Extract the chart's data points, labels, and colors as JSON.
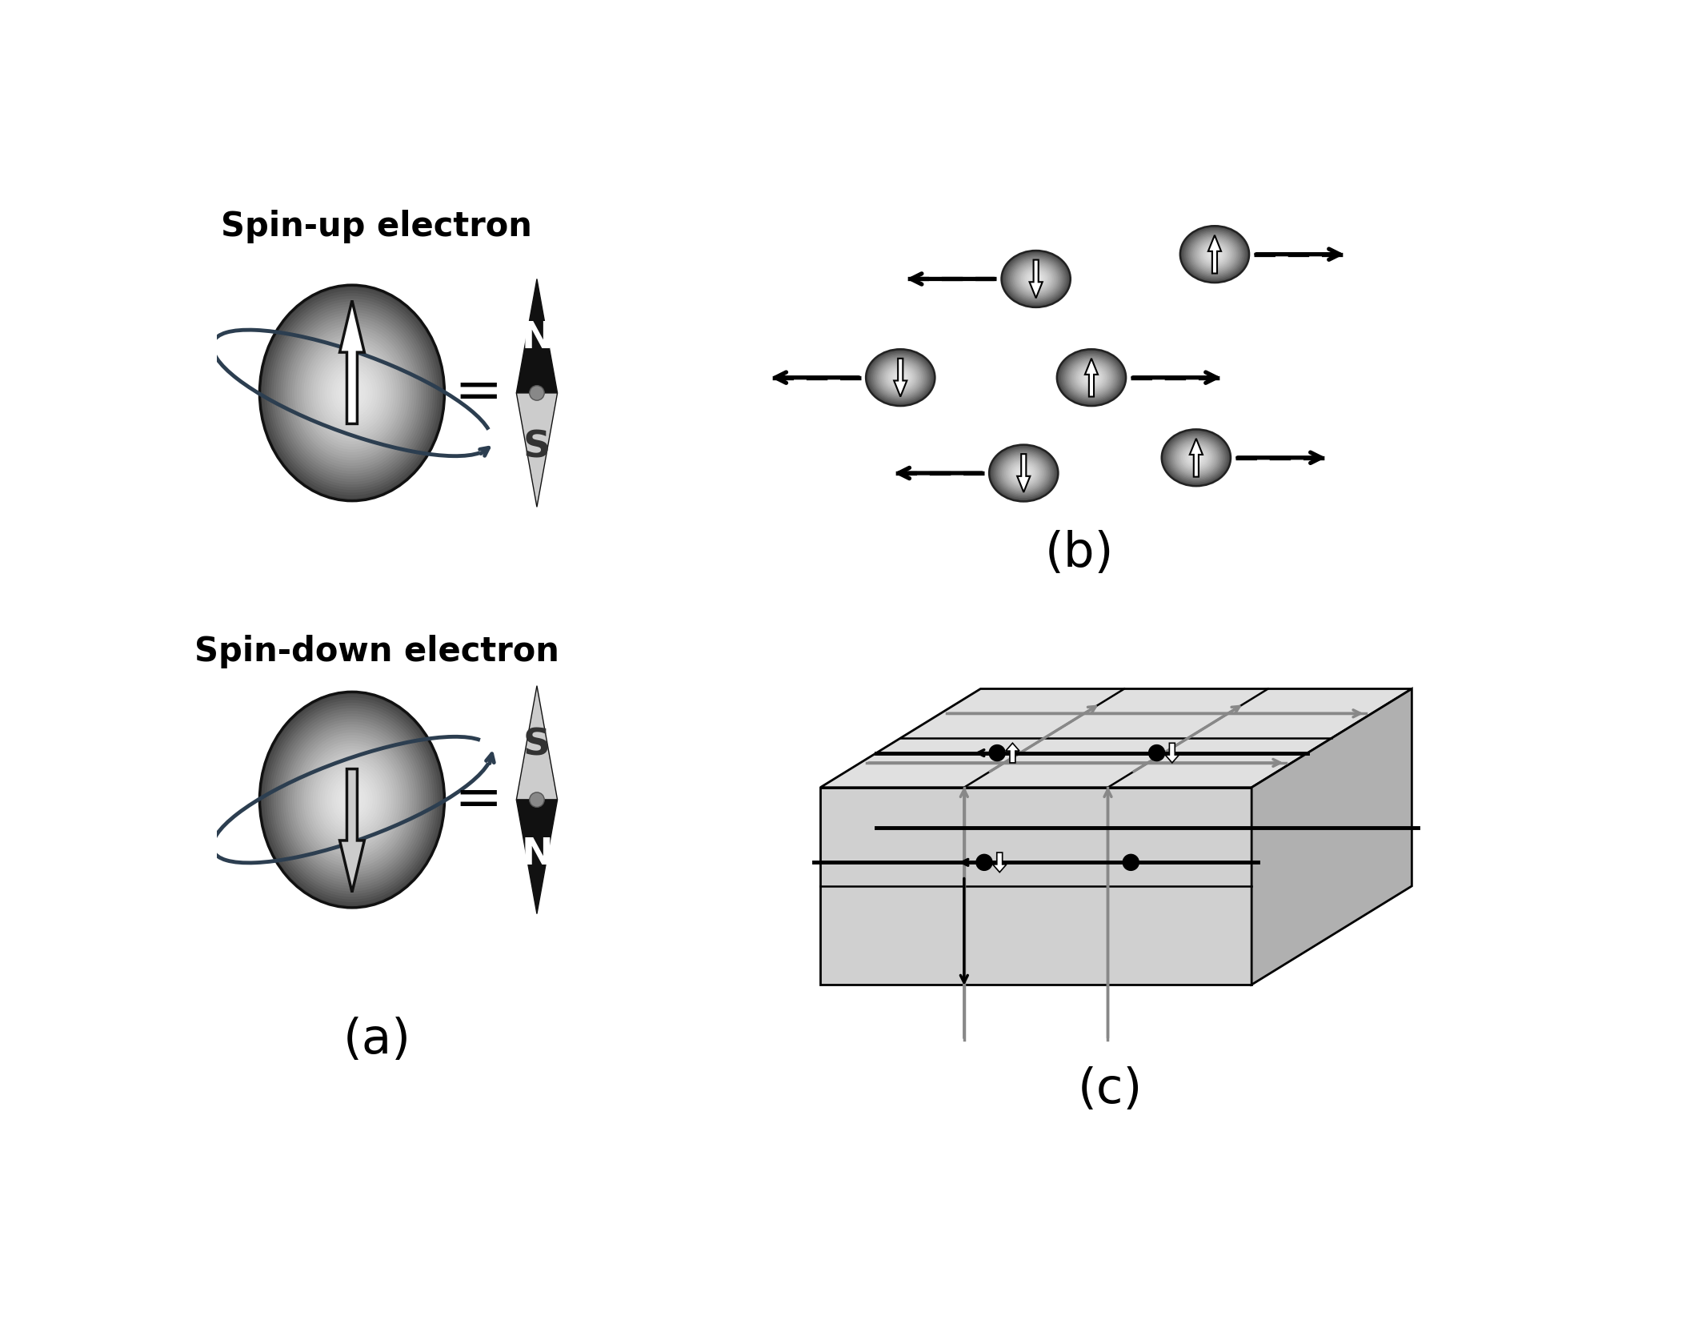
{
  "bg_color": "#ffffff",
  "label_a": "(a)",
  "label_b": "(b)",
  "label_c": "(c)",
  "spin_up_label": "Spin-up electron",
  "spin_down_label": "Spin-down electron",
  "label_fontsize": 30,
  "letter_fontsize": 44,
  "NS_fontsize": 34,
  "equals_fontsize": 52,
  "sphere_color_light": "#e8e8e8",
  "sphere_color_dark": "#444444",
  "orbit_color": "#2c3e50",
  "compass_black": "#111111",
  "compass_gray": "#cccccc",
  "compass_dot": "#888888",
  "arrow_up_color": "#ffffff",
  "arrow_down_color": "#cccccc",
  "box_front": "#d0d0d0",
  "box_top": "#e0e0e0",
  "box_right": "#b0b0b0",
  "box_stripe": "#a0a0a0",
  "gray_arrow": "#888888"
}
